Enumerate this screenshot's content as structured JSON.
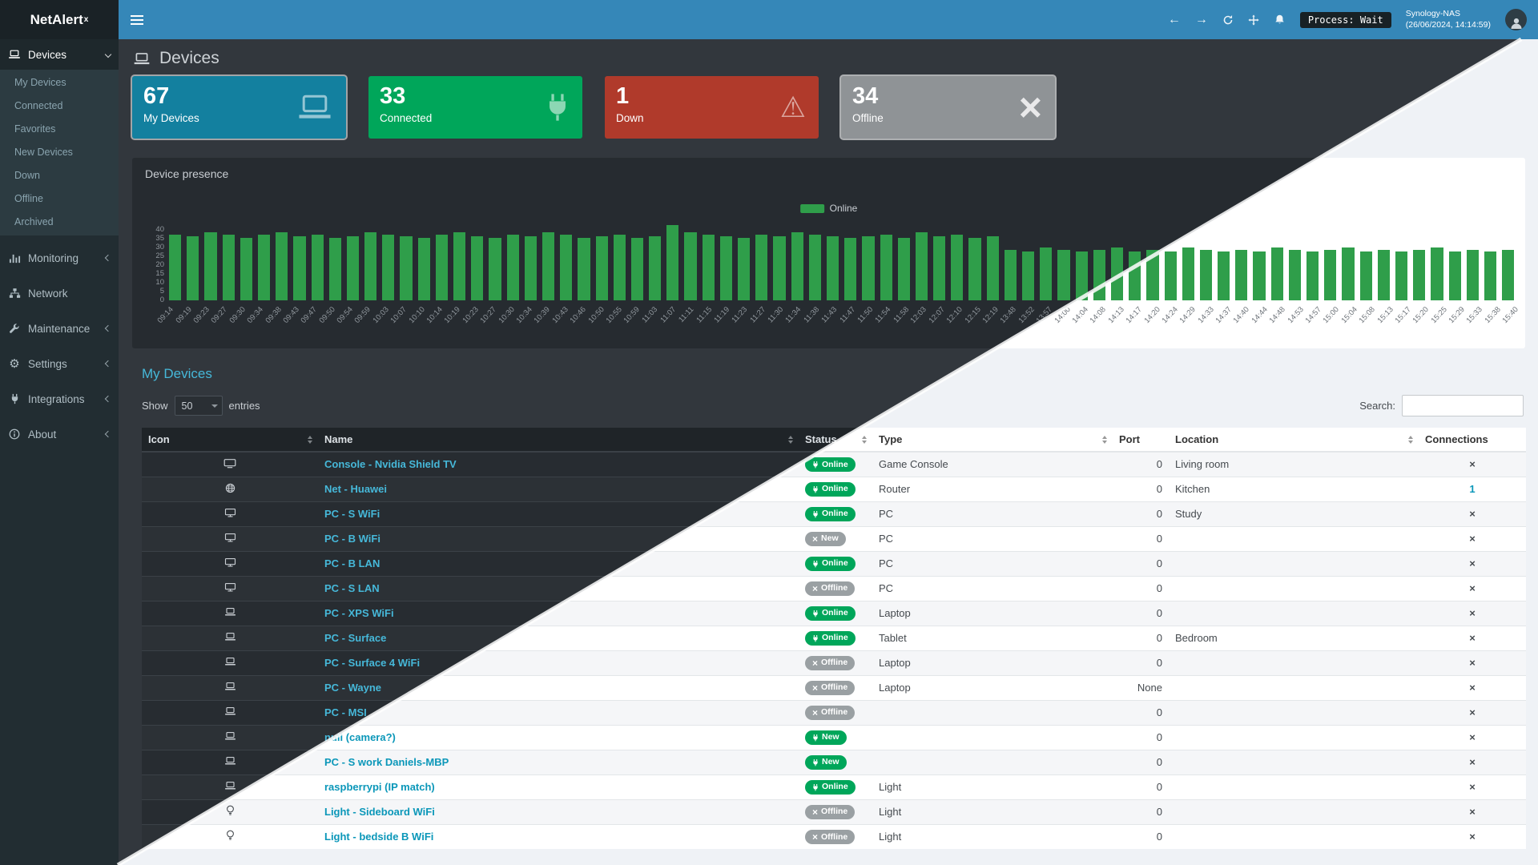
{
  "header": {
    "logo": "NetAlert",
    "logo_sup": "x",
    "process_label": "Process: Wait",
    "host": "Synology-NAS",
    "timestamp": "(26/06/2024, 14:14:59)"
  },
  "sidebar": {
    "devices": {
      "label": "Devices"
    },
    "devices_sub": [
      "My Devices",
      "Connected",
      "Favorites",
      "New Devices",
      "Down",
      "Offline",
      "Archived"
    ],
    "items": [
      {
        "label": "Monitoring"
      },
      {
        "label": "Network"
      },
      {
        "label": "Maintenance"
      },
      {
        "label": "Settings"
      },
      {
        "label": "Integrations"
      },
      {
        "label": "About"
      }
    ]
  },
  "page": {
    "title": "Devices"
  },
  "cards": [
    {
      "value": "67",
      "label": "My Devices",
      "color": "#13809f"
    },
    {
      "value": "33",
      "label": "Connected",
      "color": "#00a65a"
    },
    {
      "value": "1",
      "label": "Down",
      "color": "#b03a2b"
    },
    {
      "value": "34",
      "label": "Offline",
      "color": "#8f9396"
    }
  ],
  "presence": {
    "title": "Device presence"
  },
  "chart_data": {
    "type": "bar",
    "title": "Device presence",
    "legend": "Online",
    "legend_position": "top-center",
    "bar_color": "#2f9e4a",
    "ylim": [
      0,
      40
    ],
    "yticks": [
      40,
      35,
      30,
      25,
      20,
      15,
      10,
      5,
      0
    ],
    "x": [
      "09:14",
      "09:19",
      "09:23",
      "09:27",
      "09:30",
      "09:34",
      "09:38",
      "09:43",
      "09:47",
      "09:50",
      "09:54",
      "09:59",
      "10:03",
      "10:07",
      "10:10",
      "10:14",
      "10:19",
      "10:23",
      "10:27",
      "10:30",
      "10:34",
      "10:39",
      "10:43",
      "10:46",
      "10:50",
      "10:55",
      "10:59",
      "11:03",
      "11:07",
      "11:11",
      "11:15",
      "11:19",
      "11:23",
      "11:27",
      "11:30",
      "11:34",
      "11:38",
      "11:43",
      "11:47",
      "11:50",
      "11:54",
      "11:58",
      "12:03",
      "12:07",
      "12:10",
      "12:15",
      "12:19",
      "13:48",
      "13:52",
      "13:57",
      "14:00",
      "14:04",
      "14:08",
      "14:13",
      "14:17",
      "14:20",
      "14:24",
      "14:29",
      "14:33",
      "14:37",
      "14:40",
      "14:44",
      "14:48",
      "14:53",
      "14:57",
      "15:00",
      "15:04",
      "15:08",
      "15:13",
      "15:17",
      "15:20",
      "15:25",
      "15:29",
      "15:33",
      "15:38",
      "15:40"
    ],
    "values": [
      35,
      34,
      36,
      35,
      33,
      35,
      36,
      34,
      35,
      33,
      34,
      36,
      35,
      34,
      33,
      35,
      36,
      34,
      33,
      35,
      34,
      36,
      35,
      33,
      34,
      35,
      33,
      34,
      40,
      36,
      35,
      34,
      33,
      35,
      34,
      36,
      35,
      34,
      33,
      34,
      35,
      33,
      36,
      34,
      35,
      33,
      34,
      27,
      26,
      28,
      27,
      26,
      27,
      28,
      26,
      27,
      26,
      28,
      27,
      26,
      27,
      26,
      28,
      27,
      26,
      27,
      28,
      26,
      27,
      26,
      27,
      28,
      26,
      27,
      26,
      27
    ]
  },
  "devices_table": {
    "section_title": "My Devices",
    "show_label": "Show",
    "per_page": "50",
    "entries_label": "entries",
    "search_label": "Search:",
    "columns": [
      "Icon",
      "Name",
      "Status",
      "Type",
      "Port",
      "Location",
      "Connections"
    ],
    "rows": [
      {
        "icon": "tv",
        "name": "Console - Nvidia Shield TV",
        "status": "Online",
        "conn": "plug",
        "type": "Game Console",
        "port": "0",
        "location": "Living room",
        "connections": "×"
      },
      {
        "icon": "globe",
        "name": "Net - Huawei",
        "status": "Online",
        "conn": "plug",
        "type": "Router",
        "port": "0",
        "location": "Kitchen",
        "connections": "1"
      },
      {
        "icon": "desktop",
        "name": "PC - S WiFi",
        "status": "Online",
        "conn": "plug",
        "type": "PC",
        "port": "0",
        "location": "Study",
        "connections": "×"
      },
      {
        "icon": "desktop",
        "name": "PC - B WiFi",
        "status": "New",
        "conn": "x",
        "type": "PC",
        "port": "0",
        "location": "",
        "connections": "×"
      },
      {
        "icon": "desktop",
        "name": "PC - B LAN",
        "status": "Online",
        "conn": "plug",
        "type": "PC",
        "port": "0",
        "location": "",
        "connections": "×"
      },
      {
        "icon": "desktop",
        "name": "PC - S LAN",
        "status": "Offline",
        "conn": "x",
        "type": "PC",
        "port": "0",
        "location": "",
        "connections": "×"
      },
      {
        "icon": "laptop",
        "name": "PC - XPS WiFi",
        "status": "Online",
        "conn": "plug",
        "type": "Laptop",
        "port": "0",
        "location": "",
        "connections": "×"
      },
      {
        "icon": "laptop",
        "name": "PC - Surface",
        "status": "Online",
        "conn": "plug",
        "type": "Tablet",
        "port": "0",
        "location": "Bedroom",
        "connections": "×"
      },
      {
        "icon": "laptop",
        "name": "PC - Surface 4 WiFi",
        "status": "Offline",
        "conn": "x",
        "type": "Laptop",
        "port": "0",
        "location": "",
        "connections": "×"
      },
      {
        "icon": "laptop",
        "name": "PC - Wayne",
        "status": "Offline",
        "conn": "x",
        "type": "Laptop",
        "port": "None",
        "location": "",
        "connections": "×"
      },
      {
        "icon": "laptop",
        "name": "PC - MSI",
        "status": "Offline",
        "conn": "x",
        "type": "",
        "port": "0",
        "location": "",
        "connections": "×"
      },
      {
        "icon": "laptop",
        "name": "null (camera?)",
        "status": "New",
        "conn": "plug",
        "type": "",
        "port": "0",
        "location": "",
        "connections": "×"
      },
      {
        "icon": "laptop",
        "name": "PC - S work Daniels-MBP",
        "status": "New",
        "conn": "plug",
        "type": "",
        "port": "0",
        "location": "",
        "connections": "×"
      },
      {
        "icon": "laptop",
        "name": "raspberrypi (IP match)",
        "status": "Online",
        "conn": "plug",
        "type": "Light",
        "port": "0",
        "location": "",
        "connections": "×"
      },
      {
        "icon": "bulb",
        "name": "Light - Sideboard WiFi",
        "status": "Offline",
        "conn": "x",
        "type": "Light",
        "port": "0",
        "location": "",
        "connections": "×"
      },
      {
        "icon": "bulb",
        "name": "Light - bedside B WiFi",
        "status": "Offline",
        "conn": "x",
        "type": "Light",
        "port": "0",
        "location": "",
        "connections": "×"
      }
    ]
  },
  "colors": {
    "header_blue": "#3587b8",
    "sidebar_bg": "#222d32",
    "badge_online": "#00a65a",
    "badge_offline": "#9aa0a3",
    "bar_green": "#2f9e4a"
  }
}
